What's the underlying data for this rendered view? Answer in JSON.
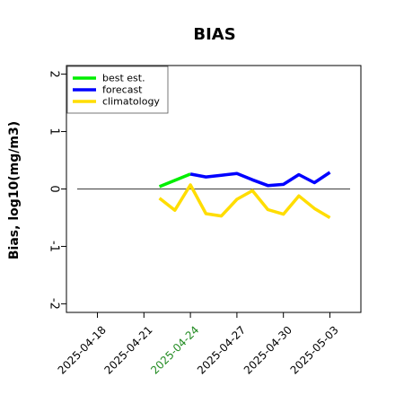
{
  "chart_data": {
    "type": "line",
    "title": "BIAS",
    "xlabel": "",
    "ylabel": "Bias, log10(mg/m3)",
    "ylim": [
      -2.15,
      2.15
    ],
    "y_ticks": [
      2,
      1,
      0,
      -1,
      -2
    ],
    "y_tick_labels": [
      "2",
      "1",
      "0",
      "-1",
      "-2"
    ],
    "x_ticks": [
      "2025-04-18",
      "2025-04-21",
      "2025-04-24",
      "2025-04-27",
      "2025-04-30",
      "2025-05-03"
    ],
    "x_tick_labels": [
      "2025-04-18",
      "2025-04-21",
      "2025-04-24",
      "2025-04-27",
      "2025-04-30",
      "2025-05-03"
    ],
    "xlim": [
      "2025-04-16",
      "2025-05-05"
    ],
    "highlighted_x_tick": "2025-04-24",
    "highlight_color": "#228b22",
    "legend_position": "top-left",
    "reference_line": 0,
    "series": [
      {
        "name": "best est.",
        "color": "#00ee00",
        "x": [
          "2025-04-22",
          "2025-04-24"
        ],
        "values": [
          0.04,
          0.26
        ]
      },
      {
        "name": "forecast",
        "color": "#0000ff",
        "x": [
          "2025-04-24",
          "2025-04-25",
          "2025-04-26",
          "2025-04-27",
          "2025-04-28",
          "2025-04-29",
          "2025-04-30",
          "2025-05-01",
          "2025-05-02",
          "2025-05-03"
        ],
        "values": [
          0.26,
          0.21,
          0.24,
          0.27,
          0.16,
          0.06,
          0.08,
          0.25,
          0.11,
          0.29
        ]
      },
      {
        "name": "climatology",
        "color": "#ffdd00",
        "x": [
          "2025-04-22",
          "2025-04-23",
          "2025-04-24",
          "2025-04-25",
          "2025-04-26",
          "2025-04-27",
          "2025-04-28",
          "2025-04-29",
          "2025-04-30",
          "2025-05-01",
          "2025-05-02",
          "2025-05-03"
        ],
        "values": [
          -0.16,
          -0.37,
          0.07,
          -0.43,
          -0.47,
          -0.18,
          -0.03,
          -0.36,
          -0.44,
          -0.12,
          -0.34,
          -0.5
        ]
      }
    ]
  }
}
